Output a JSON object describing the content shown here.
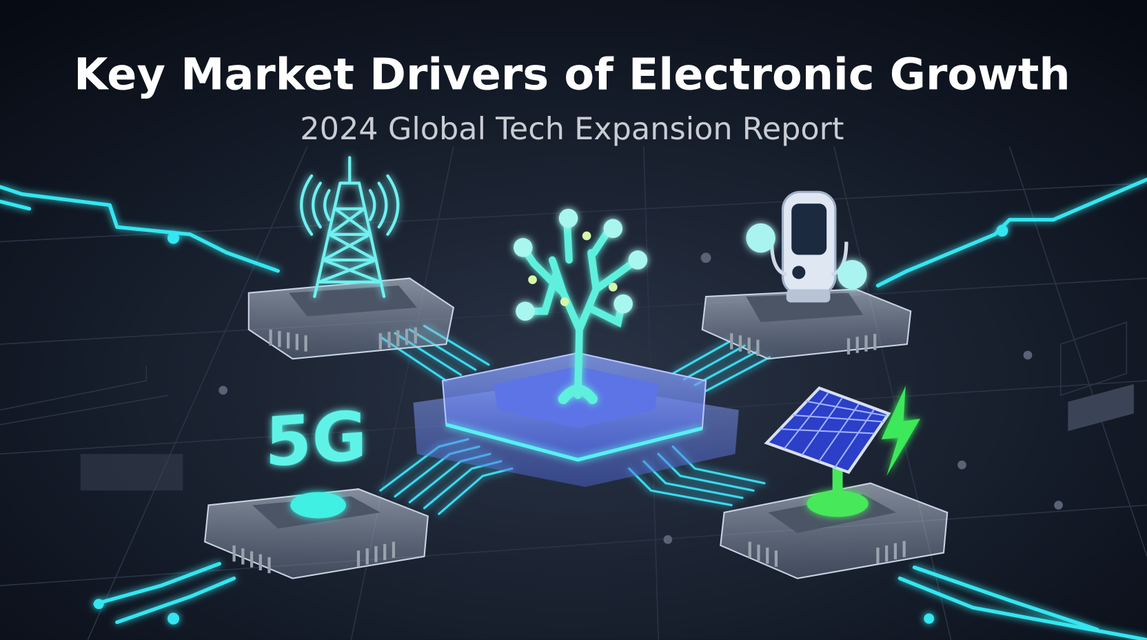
{
  "header": {
    "title": "Key Market Drivers of Electronic Growth",
    "subtitle": "2024 Global Tech Expansion Report"
  },
  "illustration": {
    "badge": "5G"
  }
}
